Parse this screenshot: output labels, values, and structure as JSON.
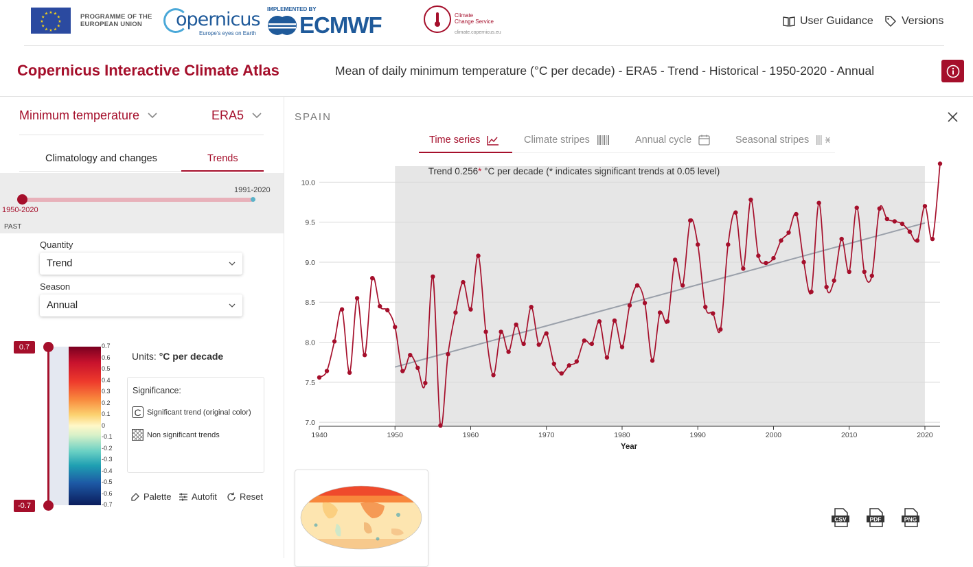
{
  "header": {
    "programme_line1": "PROGRAMME OF THE",
    "programme_line2": "EUROPEAN UNION",
    "copernicus_logo": "opernicus",
    "copernicus_tagline": "Europe's eyes on Earth",
    "implemented_by": "IMPLEMENTED BY",
    "ecmwf_logo": "ECMWF",
    "c3s_line1": "Climate",
    "c3s_line2": "Change Service",
    "c3s_url": "climate.copernicus.eu",
    "user_guidance": "User Guidance",
    "versions": "Versions"
  },
  "titles": {
    "app": "Copernicus Interactive Climate Atlas",
    "main": "Mean of daily minimum temperature (°C per decade) - ERA5 - Trend - Historical - 1950-2020 - Annual"
  },
  "left": {
    "variable": "Minimum temperature",
    "dataset": "ERA5",
    "tab_climatology": "Climatology and changes",
    "tab_trends": "Trends",
    "period_end": "1991-2020",
    "period_start": "1950-2020",
    "past_label": "PAST",
    "quantity_label": "Quantity",
    "quantity_value": "Trend",
    "season_label": "Season",
    "season_value": "Annual",
    "cb_max": "0.7",
    "cb_min": "-0.7",
    "cb_ticks": [
      "0.7",
      "0.6",
      "0.5",
      "0.4",
      "0.3",
      "0.2",
      "0.1",
      "0",
      "-0.1",
      "-0.2",
      "-0.3",
      "-0.4",
      "-0.5",
      "-0.6",
      "-0.7"
    ],
    "units_label": "Units:",
    "units_value": "°C per decade",
    "significance_title": "Significance:",
    "sig_symbol": "C",
    "sig_significant": "Significant trend (original color)",
    "sig_nonsignificant": "Non significant trends",
    "palette": "Palette",
    "autofit": "Autofit",
    "reset": "Reset"
  },
  "right": {
    "region": "SPAIN",
    "tabs": [
      "Time series",
      "Climate stripes",
      "Annual cycle",
      "Seasonal stripes"
    ],
    "downloads": [
      "CSV",
      "PDF",
      "PNG"
    ]
  },
  "colors": {
    "accent": "#a50f2b",
    "trend_line": "#9aa0aa",
    "shade": "#e6e6e6"
  },
  "chart_data": {
    "type": "line",
    "annotation_prefix": "Trend 0.256",
    "annotation_star": "*",
    "annotation_suffix": " °C per decade (* indicates significant trends at 0.05 level)",
    "xlabel": "Year",
    "ylabel": "",
    "xlim": [
      1940,
      2022
    ],
    "ylim": [
      6.95,
      10.2
    ],
    "xticks": [
      1940,
      1950,
      1960,
      1970,
      1980,
      1990,
      2000,
      2010,
      2020
    ],
    "yticks": [
      "7.0",
      "7.5",
      "8.0",
      "8.5",
      "9.0",
      "9.5",
      "10.0"
    ],
    "shaded_range": [
      1950,
      2020
    ],
    "trend": {
      "x": [
        1950,
        2020
      ],
      "y": [
        7.69,
        9.49
      ]
    },
    "x": [
      1940,
      1941,
      1942,
      1943,
      1944,
      1945,
      1946,
      1947,
      1948,
      1949,
      1950,
      1951,
      1952,
      1953,
      1954,
      1955,
      1956,
      1957,
      1958,
      1959,
      1960,
      1961,
      1962,
      1963,
      1964,
      1965,
      1966,
      1967,
      1968,
      1969,
      1970,
      1971,
      1972,
      1973,
      1974,
      1975,
      1976,
      1977,
      1978,
      1979,
      1980,
      1981,
      1982,
      1983,
      1984,
      1985,
      1986,
      1987,
      1988,
      1989,
      1990,
      1991,
      1992,
      1993,
      1994,
      1995,
      1996,
      1997,
      1998,
      1999,
      2000,
      2001,
      2002,
      2003,
      2004,
      2005,
      2006,
      2007,
      2008,
      2009,
      2010,
      2011,
      2012,
      2013,
      2014,
      2015,
      2016,
      2017,
      2018,
      2019,
      2020,
      2021,
      2022
    ],
    "y": [
      7.56,
      7.64,
      8.01,
      8.41,
      7.62,
      8.55,
      7.84,
      8.8,
      8.45,
      8.4,
      8.19,
      7.64,
      7.84,
      7.68,
      7.49,
      8.82,
      6.96,
      7.85,
      8.37,
      8.75,
      8.41,
      9.08,
      8.13,
      7.59,
      8.13,
      7.88,
      8.22,
      7.98,
      8.44,
      7.97,
      8.11,
      7.73,
      7.61,
      7.71,
      7.76,
      8.02,
      7.98,
      8.26,
      7.81,
      8.27,
      7.94,
      8.46,
      8.71,
      8.49,
      7.77,
      8.37,
      8.26,
      9.03,
      8.71,
      9.52,
      9.22,
      8.44,
      8.36,
      8.16,
      9.22,
      9.62,
      8.92,
      9.78,
      9.08,
      8.99,
      9.05,
      9.27,
      9.37,
      9.6,
      9.0,
      8.63,
      9.74,
      8.69,
      8.77,
      9.29,
      8.88,
      9.68,
      8.88,
      8.83,
      9.67,
      9.54,
      9.51,
      9.48,
      9.38,
      9.27,
      9.7,
      9.29,
      10.23
    ]
  }
}
